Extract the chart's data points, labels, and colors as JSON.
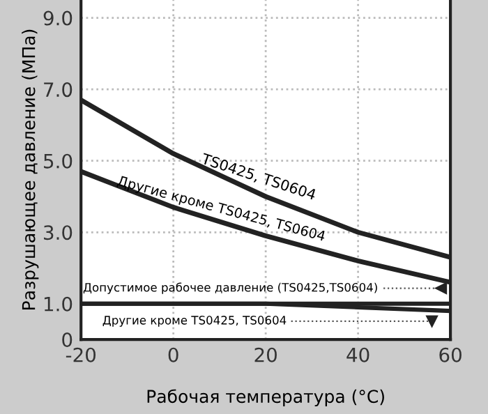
{
  "chart_data": {
    "type": "line",
    "xlabel": "Рабочая температура (°C)",
    "ylabel": "Разрушающее давление (МПа)",
    "x": [
      -20,
      0,
      20,
      40,
      60
    ],
    "series": [
      {
        "name": "TS0425, TS0604",
        "color": "#222222",
        "values": [
          6.7,
          5.2,
          4.0,
          3.0,
          2.3
        ]
      },
      {
        "name": "Другие кроме TS0425, TS0604",
        "color": "#222222",
        "values": [
          4.7,
          3.7,
          2.9,
          2.2,
          1.6
        ]
      },
      {
        "name": "Допустимое рабочее давление (TS0425,TS0604)",
        "color": "#222222",
        "values": [
          1.0,
          1.0,
          1.0,
          1.0,
          1.0
        ]
      },
      {
        "name": "Другие кроме TS0425, TS0604",
        "color": "#222222",
        "values": [
          1.0,
          1.0,
          1.0,
          0.9,
          0.8
        ]
      }
    ],
    "xlim": [
      -20,
      60
    ],
    "ylim": [
      0,
      9.5
    ],
    "xticks": [
      -20,
      0,
      20,
      40,
      60
    ],
    "yticks": [
      0,
      {
        "value": 1,
        "label": "1.0"
      },
      {
        "value": 3,
        "label": "3.0"
      },
      {
        "value": 5,
        "label": "5.0"
      },
      {
        "value": 7,
        "label": "7.0"
      },
      {
        "value": 9,
        "label": "9.0"
      }
    ],
    "grid": true,
    "legend": false,
    "marker": "none",
    "line_style": "solid"
  }
}
